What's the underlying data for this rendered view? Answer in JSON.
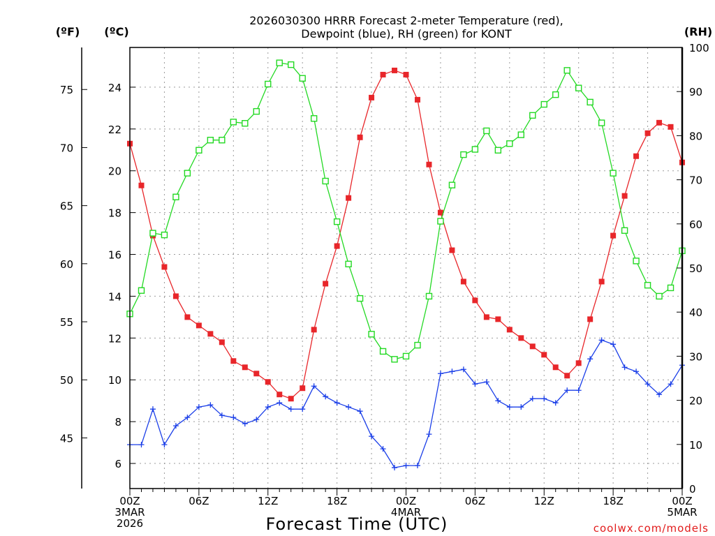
{
  "chart_data": {
    "type": "line",
    "title": [
      "2026030300 HRRR Forecast 2-meter Temperature (red),",
      "Dewpoint (blue), RH (green) for KONT"
    ],
    "xlabel": "Forecast Time (UTC)",
    "credit": "coolwx.com/models",
    "x_tick_labels": [
      {
        "hour": 0,
        "lines": [
          "00Z",
          "3MAR",
          "2026"
        ]
      },
      {
        "hour": 6,
        "lines": [
          "06Z"
        ]
      },
      {
        "hour": 12,
        "lines": [
          "12Z"
        ]
      },
      {
        "hour": 18,
        "lines": [
          "18Z"
        ]
      },
      {
        "hour": 24,
        "lines": [
          "00Z",
          "4MAR"
        ]
      },
      {
        "hour": 30,
        "lines": [
          "06Z"
        ]
      },
      {
        "hour": 36,
        "lines": [
          "12Z"
        ]
      },
      {
        "hour": 42,
        "lines": [
          "18Z"
        ]
      },
      {
        "hour": 48,
        "lines": [
          "00Z",
          "5MAR"
        ]
      }
    ],
    "xlim": [
      0,
      48
    ],
    "left_axis_celsius": {
      "unit_label": "(ºC)",
      "ylim": [
        4.8,
        25.9
      ],
      "ticks": [
        6,
        8,
        10,
        12,
        14,
        16,
        18,
        20,
        22,
        24
      ]
    },
    "left_axis_fahrenheit": {
      "unit_label": "(ºF)",
      "ticks": [
        45,
        50,
        55,
        60,
        65,
        70,
        75
      ]
    },
    "right_axis_rh": {
      "unit_label": "(RH)",
      "ylim": [
        0,
        100
      ],
      "ticks": [
        0,
        10,
        20,
        30,
        40,
        50,
        60,
        70,
        80,
        90,
        100
      ]
    },
    "grid": true,
    "series": [
      {
        "name": "Temperature",
        "color": "#e8262a",
        "marker": "filled-square",
        "axis": "celsius",
        "values": [
          21.3,
          19.3,
          16.9,
          15.4,
          14.0,
          13.0,
          12.6,
          12.2,
          11.8,
          10.9,
          10.6,
          10.3,
          9.9,
          9.3,
          9.1,
          9.6,
          12.4,
          14.6,
          16.4,
          18.7,
          21.6,
          23.5,
          24.6,
          24.8,
          24.6,
          23.4,
          20.3,
          18.0,
          16.2,
          14.7,
          13.8,
          13.0,
          12.9,
          12.4,
          12.0,
          11.6,
          11.2,
          10.6,
          10.2,
          10.8,
          12.9,
          14.7,
          16.9,
          18.8,
          20.7,
          21.8,
          22.3,
          22.1,
          20.4
        ]
      },
      {
        "name": "Dewpoint",
        "color": "#1a3ee8",
        "marker": "plus",
        "axis": "celsius",
        "values": [
          6.9,
          6.9,
          8.6,
          6.9,
          7.8,
          8.2,
          8.7,
          8.8,
          8.3,
          8.2,
          7.9,
          8.1,
          8.7,
          8.9,
          8.6,
          8.6,
          9.7,
          9.2,
          8.9,
          8.7,
          8.5,
          7.3,
          6.7,
          5.8,
          5.9,
          5.9,
          7.4,
          10.3,
          10.4,
          10.5,
          9.8,
          9.9,
          9.0,
          8.7,
          8.7,
          9.1,
          9.1,
          8.9,
          9.5,
          9.5,
          11.0,
          11.9,
          11.7,
          10.6,
          10.4,
          9.8,
          9.3,
          9.8,
          10.7
        ]
      },
      {
        "name": "RH",
        "color": "#23d923",
        "marker": "open-square",
        "axis": "rh",
        "values": [
          39.6,
          44.9,
          57.9,
          57.5,
          66.1,
          71.5,
          76.7,
          79.0,
          79.0,
          83.1,
          82.8,
          85.5,
          91.7,
          96.5,
          96.1,
          93.0,
          83.9,
          69.7,
          60.5,
          50.9,
          43.1,
          35.0,
          31.1,
          29.3,
          30.0,
          32.5,
          43.6,
          60.6,
          68.8,
          75.7,
          76.9,
          81.1,
          76.7,
          78.2,
          80.2,
          84.6,
          87.1,
          89.3,
          94.8,
          90.8,
          87.6,
          82.9,
          71.5,
          58.5,
          51.6,
          46.1,
          43.6,
          45.5,
          53.9
        ]
      }
    ]
  }
}
